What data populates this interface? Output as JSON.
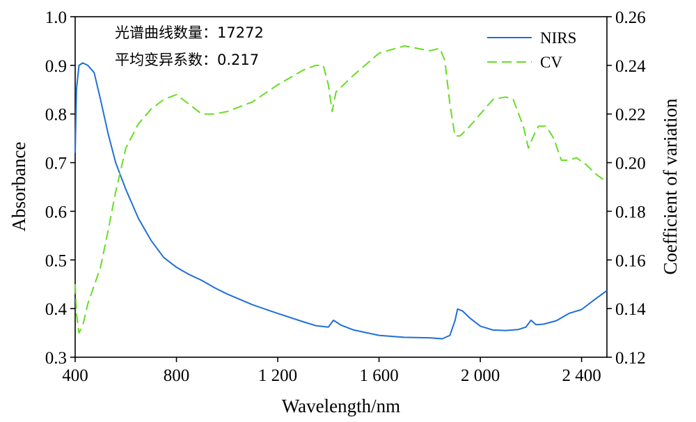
{
  "chart_data": {
    "type": "line",
    "xlabel": "Wavelength/nm",
    "ylabel": "Absorbance",
    "y2label": "Coefficient of variation",
    "xlim": [
      400,
      2500
    ],
    "ylim": [
      0.3,
      1.0
    ],
    "y2lim": [
      0.12,
      0.26
    ],
    "x_ticks": [
      400,
      800,
      1200,
      1600,
      2000,
      2400
    ],
    "x_tick_labels": [
      "400",
      "800",
      "1 200",
      "1 600",
      "2 000",
      "2 400"
    ],
    "y_ticks": [
      0.3,
      0.4,
      0.5,
      0.6,
      0.7,
      0.8,
      0.9,
      1.0
    ],
    "y_tick_labels": [
      "0.3",
      "0.4",
      "0.5",
      "0.6",
      "0.7",
      "0.8",
      "0.9",
      "1.0"
    ],
    "y2_ticks": [
      0.12,
      0.14,
      0.16,
      0.18,
      0.2,
      0.22,
      0.24,
      0.26
    ],
    "y2_tick_labels": [
      "0.12",
      "0.14",
      "0.16",
      "0.18",
      "0.20",
      "0.22",
      "0.24",
      "0.26"
    ],
    "grid": false,
    "legend_position": "top-right",
    "annotations": [
      "光谱曲线数量：17272",
      "平均变异系数：0.217"
    ],
    "series": [
      {
        "name": "NIRS",
        "axis": "left",
        "style": "solid",
        "color": "#1f6fd8",
        "x": [
          400,
          405,
          415,
          430,
          450,
          475,
          500,
          530,
          560,
          600,
          650,
          700,
          750,
          800,
          850,
          900,
          950,
          1000,
          1100,
          1200,
          1300,
          1350,
          1400,
          1420,
          1450,
          1500,
          1600,
          1700,
          1800,
          1850,
          1880,
          1900,
          1910,
          1930,
          1960,
          2000,
          2050,
          2100,
          2150,
          2180,
          2200,
          2220,
          2250,
          2300,
          2350,
          2400,
          2450,
          2500
        ],
        "values": [
          0.72,
          0.85,
          0.9,
          0.905,
          0.9,
          0.885,
          0.83,
          0.76,
          0.7,
          0.645,
          0.585,
          0.54,
          0.505,
          0.485,
          0.47,
          0.458,
          0.443,
          0.43,
          0.408,
          0.39,
          0.373,
          0.365,
          0.362,
          0.376,
          0.366,
          0.356,
          0.345,
          0.341,
          0.34,
          0.338,
          0.345,
          0.375,
          0.399,
          0.395,
          0.38,
          0.364,
          0.356,
          0.355,
          0.357,
          0.362,
          0.376,
          0.367,
          0.368,
          0.375,
          0.39,
          0.398,
          0.418,
          0.437
        ]
      },
      {
        "name": "CV",
        "axis": "right",
        "style": "dashed",
        "color": "#66dd22",
        "x": [
          400,
          405,
          415,
          430,
          450,
          470,
          500,
          530,
          560,
          600,
          650,
          700,
          750,
          800,
          850,
          900,
          950,
          1000,
          1100,
          1200,
          1300,
          1350,
          1380,
          1400,
          1415,
          1430,
          1500,
          1600,
          1700,
          1750,
          1800,
          1840,
          1860,
          1880,
          1900,
          1920,
          1950,
          2000,
          2050,
          2100,
          2130,
          2170,
          2190,
          2210,
          2230,
          2260,
          2290,
          2320,
          2350,
          2380,
          2420,
          2460,
          2500
        ],
        "values": [
          0.15,
          0.138,
          0.13,
          0.133,
          0.142,
          0.148,
          0.157,
          0.172,
          0.188,
          0.206,
          0.216,
          0.222,
          0.226,
          0.228,
          0.224,
          0.22,
          0.22,
          0.221,
          0.225,
          0.232,
          0.238,
          0.24,
          0.24,
          0.232,
          0.221,
          0.229,
          0.236,
          0.245,
          0.248,
          0.247,
          0.246,
          0.247,
          0.242,
          0.224,
          0.211,
          0.211,
          0.214,
          0.22,
          0.226,
          0.227,
          0.226,
          0.215,
          0.206,
          0.211,
          0.215,
          0.215,
          0.21,
          0.201,
          0.201,
          0.202,
          0.199,
          0.195,
          0.192
        ]
      }
    ]
  }
}
